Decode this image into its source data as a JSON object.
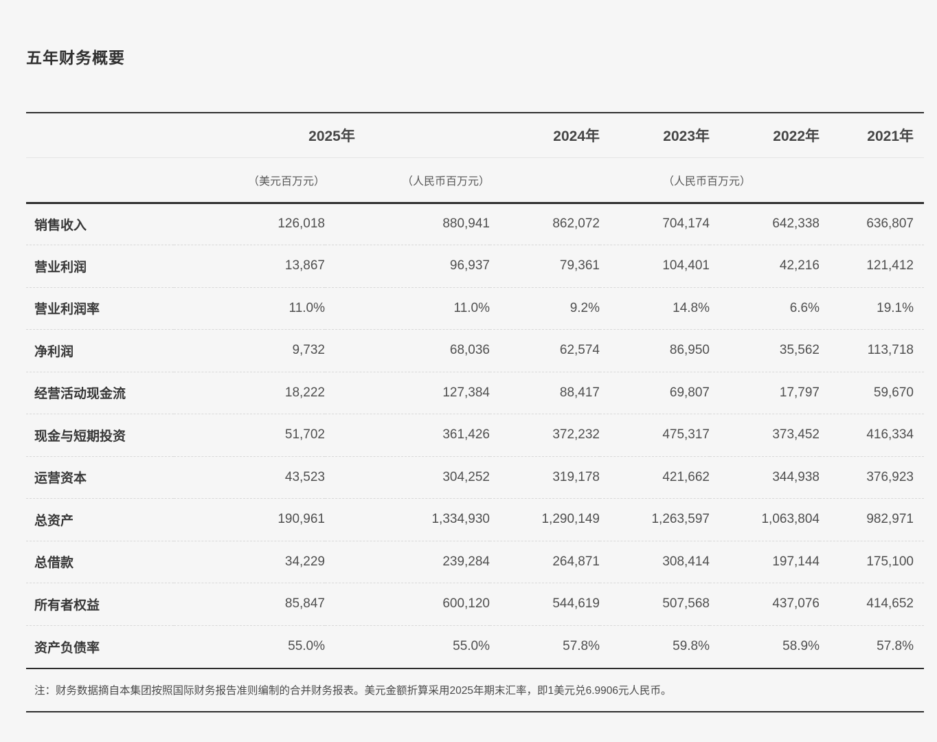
{
  "page": {
    "title": "五年财务概要",
    "footnote": "注：财务数据摘自本集团按照国际财务报告准则编制的合并财务报表。美元金额折算采用2025年期末汇率，即1美元兑6.9906元人民币。"
  },
  "table": {
    "year_headers": [
      "2025年",
      "2024年",
      "2023年",
      "2022年",
      "2021年"
    ],
    "unit_headers": [
      "（美元百万元）",
      "（人民币百万元）",
      "（人民币百万元）"
    ],
    "rows": [
      {
        "label": "销售收入",
        "values": [
          "126,018",
          "880,941",
          "862,072",
          "704,174",
          "642,338",
          "636,807"
        ]
      },
      {
        "label": "营业利润",
        "values": [
          "13,867",
          "96,937",
          "79,361",
          "104,401",
          "42,216",
          "121,412"
        ]
      },
      {
        "label": "营业利润率",
        "values": [
          "11.0%",
          "11.0%",
          "9.2%",
          "14.8%",
          "6.6%",
          "19.1%"
        ]
      },
      {
        "label": "净利润",
        "values": [
          "9,732",
          "68,036",
          "62,574",
          "86,950",
          "35,562",
          "113,718"
        ]
      },
      {
        "label": "经营活动现金流",
        "values": [
          "18,222",
          "127,384",
          "88,417",
          "69,807",
          "17,797",
          "59,670"
        ]
      },
      {
        "label": "现金与短期投资",
        "values": [
          "51,702",
          "361,426",
          "372,232",
          "475,317",
          "373,452",
          "416,334"
        ]
      },
      {
        "label": "运营资本",
        "values": [
          "43,523",
          "304,252",
          "319,178",
          "421,662",
          "344,938",
          "376,923"
        ]
      },
      {
        "label": "总资产",
        "values": [
          "190,961",
          "1,334,930",
          "1,290,149",
          "1,263,597",
          "1,063,804",
          "982,971"
        ]
      },
      {
        "label": "总借款",
        "values": [
          "34,229",
          "239,284",
          "264,871",
          "308,414",
          "197,144",
          "175,100"
        ]
      },
      {
        "label": "所有者权益",
        "values": [
          "85,847",
          "600,120",
          "544,619",
          "507,568",
          "437,076",
          "414,652"
        ]
      },
      {
        "label": "资产负债率",
        "values": [
          "55.0%",
          "55.0%",
          "57.8%",
          "59.8%",
          "58.9%",
          "57.8%"
        ]
      }
    ]
  }
}
